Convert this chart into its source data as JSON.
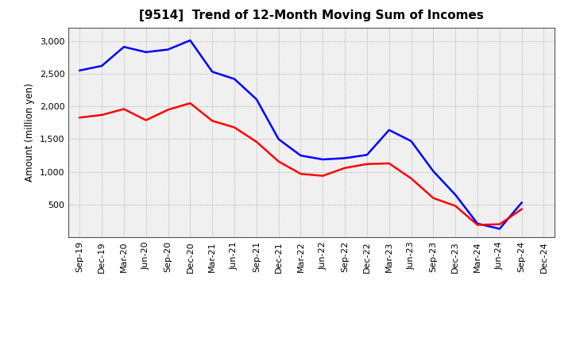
{
  "title": "[9514]  Trend of 12-Month Moving Sum of Incomes",
  "ylabel": "Amount (million yen)",
  "xlabels": [
    "Sep-19",
    "Dec-19",
    "Mar-20",
    "Jun-20",
    "Sep-20",
    "Dec-20",
    "Mar-21",
    "Jun-21",
    "Sep-21",
    "Dec-21",
    "Mar-22",
    "Jun-22",
    "Sep-22",
    "Dec-22",
    "Mar-23",
    "Jun-23",
    "Sep-23",
    "Dec-23",
    "Mar-24",
    "Jun-24",
    "Sep-24",
    "Dec-24"
  ],
  "ordinary_income": [
    2550,
    2620,
    2910,
    2830,
    2870,
    3010,
    2530,
    2420,
    2110,
    1500,
    1250,
    1190,
    1210,
    1260,
    1640,
    1470,
    1010,
    650,
    210,
    130,
    530,
    null
  ],
  "net_income": [
    1830,
    1870,
    1960,
    1790,
    1950,
    2050,
    1780,
    1680,
    1460,
    1160,
    970,
    940,
    1060,
    1120,
    1130,
    900,
    600,
    480,
    190,
    200,
    430,
    null
  ],
  "ordinary_color": "#0000ff",
  "net_color": "#ff0000",
  "ylim": [
    0,
    3200
  ],
  "yticks": [
    500,
    1000,
    1500,
    2000,
    2500,
    3000
  ],
  "background_color": "#ffffff",
  "plot_bg_color": "#f0f0f0",
  "grid_color": "#999999",
  "title_fontsize": 11,
  "label_fontsize": 8.5,
  "tick_fontsize": 8
}
